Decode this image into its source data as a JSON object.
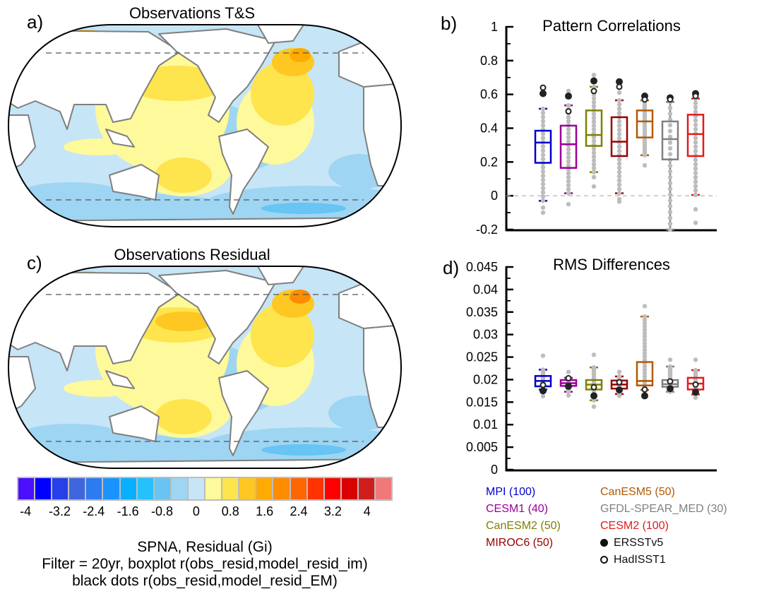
{
  "panels": {
    "a": {
      "label": "a)",
      "title": "Observations T&S"
    },
    "b": {
      "label": "b)"
    },
    "c": {
      "label": "c)",
      "title": "Observations Residual"
    },
    "d": {
      "label": "d)"
    }
  },
  "colorbar": {
    "colors": [
      "#4b0fff",
      "#0000ff",
      "#2640e8",
      "#3f66dd",
      "#2c7bf0",
      "#1a93ff",
      "#07afff",
      "#24c1fa",
      "#68c4f2",
      "#9ed5f2",
      "#c6e5f6",
      "#fef99a",
      "#fee44d",
      "#fec721",
      "#feaa00",
      "#fe8c00",
      "#fe6600",
      "#ff3300",
      "#fb0000",
      "#d90000",
      "#d01e1e",
      "#ef7979"
    ],
    "tick_labels": [
      "-4",
      "-3.2",
      "-2.4",
      "-1.6",
      "-0.8",
      "0",
      "0.8",
      "1.6",
      "2.4",
      "3.2",
      "4"
    ]
  },
  "caption": {
    "line1": "SPNA, Residual (Gi)",
    "line2": "Filter = 20yr, boxplot r(obs_resid,model_resid_im)",
    "line3": "black dots r(obs_resid,model_resid_EM)"
  },
  "legend": {
    "models": [
      {
        "label": "MPI (100)",
        "color": "#0000cc"
      },
      {
        "label": "CESM1 (40)",
        "color": "#990099"
      },
      {
        "label": "CanESM2 (50)",
        "color": "#7f7f00"
      },
      {
        "label": "MIROC6 (50)",
        "color": "#990000"
      },
      {
        "label": "CanESM5 (50)",
        "color": "#b35900"
      },
      {
        "label": "GFDL-SPEAR_MED (30)",
        "color": "#808080"
      },
      {
        "label": "CESM2 (100)",
        "color": "#e01b1b"
      }
    ],
    "obs": [
      {
        "label": "ERSSTv5",
        "marker": "filled-dot"
      },
      {
        "label": "HadISST1",
        "marker": "open-dot"
      }
    ]
  },
  "chart_data": [
    {
      "panel": "b",
      "type": "box",
      "title": "Pattern Correlations",
      "xlabel": "",
      "ylabel": "",
      "ylim": [
        -0.2,
        1.0
      ],
      "yticks": [
        -0.2,
        0,
        0.2,
        0.4,
        0.6,
        0.8,
        1
      ],
      "ytick_labels": [
        "-0.2",
        "0",
        "0.2",
        "0.4",
        "0.6",
        "0.8",
        "1"
      ],
      "reference_line": 0,
      "categories": [
        "MPI",
        "CESM1",
        "CanESM2",
        "MIROC6",
        "CanESM5",
        "GFDL-SPEAR_MED",
        "CESM2"
      ],
      "series": [
        {
          "name": "MPI",
          "whisker_low": -0.03,
          "q1": 0.195,
          "median": 0.315,
          "q3": 0.385,
          "whisker_high": 0.515,
          "outliers": [
            -0.07,
            -0.1
          ],
          "ersstv5": 0.605,
          "hadisst1": 0.64
        },
        {
          "name": "CESM1",
          "whisker_low": 0.015,
          "q1": 0.165,
          "median": 0.305,
          "q3": 0.415,
          "whisker_high": 0.535,
          "outliers": [
            -0.05,
            0.62
          ],
          "ersstv5": 0.59,
          "hadisst1": 0.5
        },
        {
          "name": "CanESM2",
          "whisker_low": 0.14,
          "q1": 0.295,
          "median": 0.36,
          "q3": 0.505,
          "whisker_high": 0.645,
          "outliers": [
            0.11,
            0.055,
            0.715
          ],
          "ersstv5": 0.68,
          "hadisst1": 0.62
        },
        {
          "name": "MIROC6",
          "whisker_low": 0.015,
          "q1": 0.235,
          "median": 0.32,
          "q3": 0.465,
          "whisker_high": 0.565,
          "outliers": [
            -0.02,
            -0.035,
            0.61
          ],
          "ersstv5": 0.675,
          "hadisst1": 0.645
        },
        {
          "name": "CanESM5",
          "whisker_low": 0.24,
          "q1": 0.345,
          "median": 0.44,
          "q3": 0.505,
          "whisker_high": 0.565,
          "outliers": [
            0.18
          ],
          "ersstv5": 0.59,
          "hadisst1": 0.57
        },
        {
          "name": "GFDL-SPEAR_MED",
          "whisker_low": -0.2,
          "q1": 0.215,
          "median": 0.335,
          "q3": 0.44,
          "whisker_high": 0.555,
          "outliers": [],
          "ersstv5": 0.58,
          "hadisst1": 0.57
        },
        {
          "name": "CESM2",
          "whisker_low": 0.005,
          "q1": 0.235,
          "median": 0.365,
          "q3": 0.48,
          "whisker_high": 0.575,
          "outliers": [
            -0.08,
            -0.16
          ],
          "ersstv5": 0.605,
          "hadisst1": 0.59
        }
      ]
    },
    {
      "panel": "d",
      "type": "box",
      "title": "RMS Differences",
      "xlabel": "",
      "ylabel": "",
      "ylim": [
        0,
        0.045
      ],
      "yticks": [
        0,
        0.005,
        0.01,
        0.015,
        0.02,
        0.025,
        0.03,
        0.035,
        0.04,
        0.045
      ],
      "ytick_labels": [
        "0",
        "0.005",
        "0.01",
        "0.015",
        "0.02",
        "0.025",
        "0.03",
        "0.035",
        "0.04",
        "0.045"
      ],
      "categories": [
        "MPI",
        "CESM1",
        "CanESM2",
        "MIROC6",
        "CanESM5",
        "GFDL-SPEAR_MED",
        "CESM2"
      ],
      "series": [
        {
          "name": "MPI",
          "whisker_low": 0.0178,
          "q1": 0.0185,
          "median": 0.0197,
          "q3": 0.0208,
          "whisker_high": 0.0222,
          "outliers": [
            0.0253,
            0.0163
          ],
          "ersstv5": 0.0175,
          "hadisst1": 0.0188
        },
        {
          "name": "CESM1",
          "whisker_low": 0.0173,
          "q1": 0.0186,
          "median": 0.0192,
          "q3": 0.0199,
          "whisker_high": 0.0204,
          "outliers": [
            0.0217,
            0.0165
          ],
          "ersstv5": 0.0185,
          "hadisst1": 0.0203
        },
        {
          "name": "CanESM2",
          "whisker_low": 0.0154,
          "q1": 0.0178,
          "median": 0.0189,
          "q3": 0.0199,
          "whisker_high": 0.0227,
          "outliers": [
            0.0255,
            0.014
          ],
          "ersstv5": 0.0164,
          "hadisst1": 0.0183
        },
        {
          "name": "MIROC6",
          "whisker_low": 0.0168,
          "q1": 0.018,
          "median": 0.0189,
          "q3": 0.0198,
          "whisker_high": 0.0207,
          "outliers": [
            0.0217,
            0.0164
          ],
          "ersstv5": 0.0177,
          "hadisst1": 0.0194
        },
        {
          "name": "CanESM5",
          "whisker_low": 0.0177,
          "q1": 0.0187,
          "median": 0.0197,
          "q3": 0.0239,
          "whisker_high": 0.034,
          "outliers": [
            0.0363
          ],
          "ersstv5": 0.0164,
          "hadisst1": 0.0178
        },
        {
          "name": "GFDL-SPEAR_MED",
          "whisker_low": 0.0173,
          "q1": 0.0184,
          "median": 0.019,
          "q3": 0.0199,
          "whisker_high": 0.0229,
          "outliers": [
            0.0244
          ],
          "ersstv5": 0.018,
          "hadisst1": 0.0196
        },
        {
          "name": "CESM2",
          "whisker_low": 0.0167,
          "q1": 0.0178,
          "median": 0.0191,
          "q3": 0.0204,
          "whisker_high": 0.0221,
          "outliers": [
            0.0244,
            0.016
          ],
          "ersstv5": 0.0172,
          "hadisst1": 0.0189
        }
      ]
    }
  ]
}
